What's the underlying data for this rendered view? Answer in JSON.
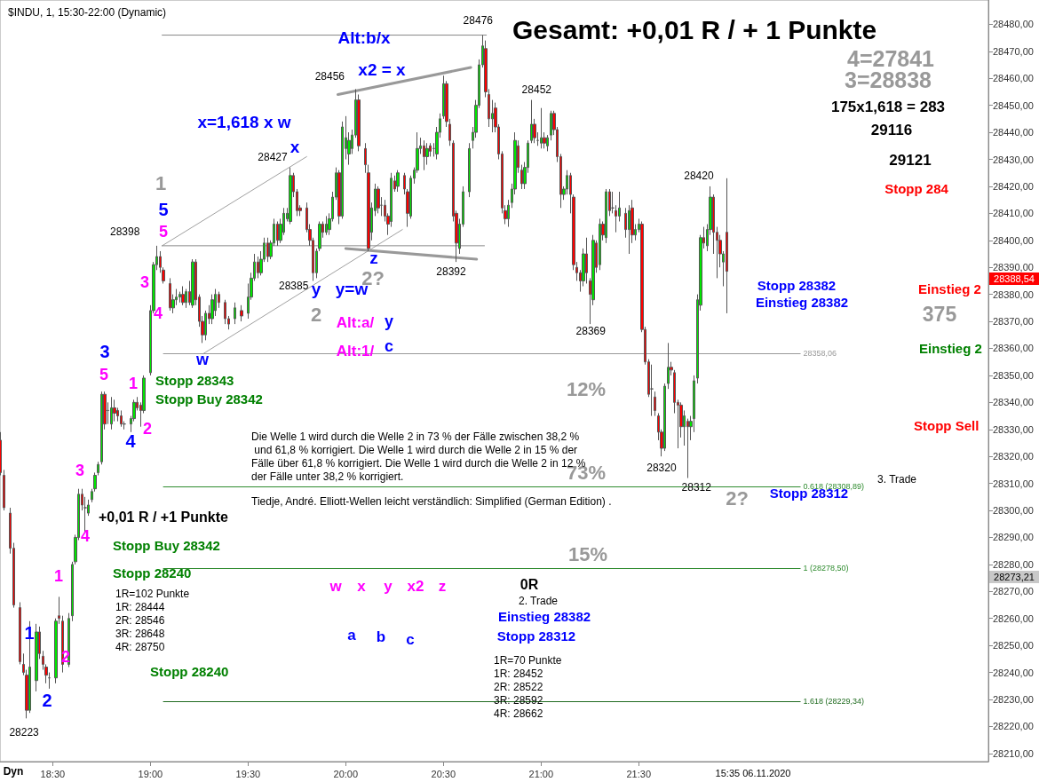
{
  "chart_data": {
    "type": "candlestick",
    "title": "$INDU, 1, 15:30-22:00 (Dynamic)",
    "subtitle": "Gesamt: +0,01 R / + 1 Punkte",
    "x": [
      18.2333,
      18.25,
      18.2833,
      18.3,
      18.3333,
      18.35,
      18.3667,
      18.3833,
      18.4167,
      18.4333,
      18.45,
      18.4667,
      18.4833,
      18.5167,
      18.5333,
      18.55,
      18.5833,
      18.6,
      18.6167,
      18.6333,
      18.65,
      18.6667,
      18.6833,
      18.7,
      18.7167,
      18.7333,
      18.75,
      18.7667,
      18.7833,
      18.8,
      18.8167,
      18.8333,
      18.85,
      18.8667,
      18.9,
      18.9167,
      18.9333,
      18.95,
      18.9667,
      19.0,
      19.0167,
      19.0333,
      19.05,
      19.0667,
      19.1,
      19.1167,
      19.1333,
      19.15,
      19.1667,
      19.1833,
      19.2,
      19.2167,
      19.2333,
      19.25,
      19.2667,
      19.2833,
      19.3,
      19.3167,
      19.3333,
      19.35,
      19.3833,
      19.4,
      19.4333,
      19.4667,
      19.5,
      19.5167,
      19.5333,
      19.55,
      19.5667,
      19.5833,
      19.6,
      19.6167,
      19.6333,
      19.65,
      19.6667,
      19.6833,
      19.7,
      19.7167,
      19.7333,
      19.75,
      19.7667,
      19.8,
      19.8167,
      19.8333,
      19.85,
      19.8667,
      19.8833,
      19.9,
      19.9167,
      19.9333,
      19.95,
      19.9667,
      19.9833,
      20.0,
      20.0167,
      20.0333,
      20.05,
      20.0667,
      20.1,
      20.1167,
      20.1333,
      20.15,
      20.1667,
      20.1833,
      20.2,
      20.2167,
      20.2333,
      20.25,
      20.2667,
      20.3,
      20.3167,
      20.3333,
      20.35,
      20.3667,
      20.3833,
      20.4,
      20.4167,
      20.4333,
      20.45,
      20.4667,
      20.4833,
      20.5,
      20.5167,
      20.5333,
      20.55,
      20.5667,
      20.5833,
      20.6,
      20.6333,
      20.65,
      20.6667,
      20.6833,
      20.7,
      20.7167,
      20.7333,
      20.75,
      20.7667,
      20.7833,
      20.8,
      20.8167,
      20.8333,
      20.85,
      20.8667,
      20.8833,
      20.9,
      20.9167,
      20.9333,
      20.95,
      20.9667,
      20.9833,
      21.0,
      21.0167,
      21.0333,
      21.05,
      21.0667,
      21.0833,
      21.1,
      21.1167,
      21.1333,
      21.15,
      21.1667,
      21.1833,
      21.2,
      21.2167,
      21.2333,
      21.25,
      21.2667,
      21.2833,
      21.3,
      21.3167,
      21.3333,
      21.35,
      21.3667,
      21.3833,
      21.4,
      21.4333,
      21.45,
      21.4667,
      21.4833,
      21.5,
      21.5167,
      21.5333,
      21.55,
      21.5667,
      21.5833,
      21.6,
      21.6167,
      21.6333,
      21.65,
      21.6667,
      21.6833,
      21.7,
      21.7167,
      21.7333,
      21.75,
      21.7667,
      21.7833,
      21.8,
      21.8167,
      21.8333,
      21.85,
      21.8667,
      21.8833,
      21.9,
      21.9167,
      21.9333,
      21.95
    ],
    "ohlc": [
      [
        28326,
        28329,
        28313,
        28314
      ],
      [
        28313,
        28315,
        28300,
        28301
      ],
      [
        28299,
        28301,
        28284,
        28286
      ],
      [
        28286,
        28288,
        28264,
        28265
      ],
      [
        28264,
        28266,
        28243,
        28244
      ],
      [
        28243,
        28247,
        28239,
        28240
      ],
      [
        28239,
        28241,
        28223,
        28226
      ],
      [
        28226,
        28259,
        28225,
        28242
      ],
      [
        28237,
        28258,
        28233,
        28255
      ],
      [
        28255,
        28257,
        28245,
        28247
      ],
      [
        28246,
        28248,
        28241,
        28243
      ],
      [
        28242,
        28243,
        28236,
        28239
      ],
      [
        28238,
        28240,
        28234,
        28238
      ],
      [
        28238,
        28260,
        28236,
        28259
      ],
      [
        28261,
        28268,
        28258,
        28260
      ],
      [
        28259,
        28261,
        28240,
        28243
      ],
      [
        28243,
        28262,
        28242,
        28260
      ],
      [
        28261,
        28281,
        28259,
        28280
      ],
      [
        28281,
        28291,
        28280,
        28290
      ],
      [
        28290,
        28308,
        28289,
        28306
      ],
      [
        28306,
        28308,
        28300,
        28302
      ],
      [
        28301,
        28305,
        28292,
        28301
      ],
      [
        28299,
        28304,
        28298,
        28302
      ],
      [
        28304,
        28308,
        28303,
        28307
      ],
      [
        28308,
        28314,
        28307,
        28313
      ],
      [
        28314,
        28318,
        28313,
        28317
      ],
      [
        28318,
        28344,
        28317,
        28343
      ],
      [
        28343,
        28344,
        28330,
        28332
      ],
      [
        28337,
        28340,
        28332,
        28337
      ],
      [
        28332,
        28342,
        28330,
        28338
      ],
      [
        28338,
        28341,
        28333,
        28336
      ],
      [
        28337,
        28338,
        28333,
        28335
      ],
      [
        28335,
        28337,
        28331,
        28332
      ],
      [
        28332,
        28333,
        28330,
        28332
      ],
      [
        28332,
        28335,
        28329,
        28334
      ],
      [
        28334,
        28341,
        28333,
        28340
      ],
      [
        28340,
        28342,
        28337,
        28338
      ],
      [
        28339,
        28340,
        28331,
        28337
      ],
      [
        28337,
        28350,
        28336,
        28349
      ],
      [
        28351,
        28376,
        28350,
        28374
      ],
      [
        28374,
        28392,
        28373,
        28391
      ],
      [
        28391,
        28398,
        28389,
        28394
      ],
      [
        28394,
        28396,
        28388,
        28390
      ],
      [
        28389,
        28390,
        28384,
        28385
      ],
      [
        28384,
        28386,
        28374,
        28375
      ],
      [
        28375,
        28380,
        28373,
        28378
      ],
      [
        28378,
        28382,
        28376,
        28379
      ],
      [
        28379,
        28381,
        28377,
        28380
      ],
      [
        28380,
        28383,
        28376,
        28377
      ],
      [
        28377,
        28382,
        28375,
        28381
      ],
      [
        28381,
        28385,
        28376,
        28377
      ],
      [
        28376,
        28393,
        28375,
        28392
      ],
      [
        28392,
        28393,
        28376,
        28378
      ],
      [
        28379,
        28380,
        28368,
        28370
      ],
      [
        28370,
        28372,
        28362,
        28365
      ],
      [
        28365,
        28374,
        28363,
        28373
      ],
      [
        28373,
        28376,
        28369,
        28371
      ],
      [
        28371,
        28380,
        28369,
        28378
      ],
      [
        28374,
        28382,
        28372,
        28380
      ],
      [
        28380,
        28381,
        28375,
        28377
      ],
      [
        28377,
        28378,
        28369,
        28371
      ],
      [
        28371,
        28372,
        28367,
        28369
      ],
      [
        28371,
        28377,
        28369,
        28375
      ],
      [
        28374,
        28376,
        28370,
        28372
      ],
      [
        28373,
        28384,
        28371,
        28379
      ],
      [
        28379,
        28388,
        28378,
        28386
      ],
      [
        28386,
        28395,
        28385,
        28392
      ],
      [
        28392,
        28394,
        28386,
        28388
      ],
      [
        28388,
        28396,
        28387,
        28393
      ],
      [
        28393,
        28401,
        28392,
        28399
      ],
      [
        28399,
        28401,
        28392,
        28394
      ],
      [
        28394,
        28400,
        28393,
        28399
      ],
      [
        28399,
        28408,
        28398,
        28406
      ],
      [
        28406,
        28407,
        28398,
        28400
      ],
      [
        28400,
        28408,
        28399,
        28406
      ],
      [
        28403,
        28412,
        28402,
        28410
      ],
      [
        28408,
        28412,
        28407,
        28410
      ],
      [
        28407,
        28427,
        28406,
        28424
      ],
      [
        28424,
        28425,
        28416,
        28418
      ],
      [
        28418,
        28419,
        28409,
        28411
      ],
      [
        28412,
        28413,
        28409,
        28411
      ],
      [
        28412,
        28414,
        28403,
        28404
      ],
      [
        28404,
        28406,
        28398,
        28400
      ],
      [
        28400,
        28401,
        28385,
        28388
      ],
      [
        28388,
        28397,
        28386,
        28396
      ],
      [
        28397,
        28407,
        28396,
        28406
      ],
      [
        28406,
        28407,
        28401,
        28403
      ],
      [
        28403,
        28409,
        28402,
        28406
      ],
      [
        28404,
        28410,
        28402,
        28408
      ],
      [
        28408,
        28418,
        28407,
        28416
      ],
      [
        28416,
        28427,
        28415,
        28425
      ],
      [
        28425,
        28426,
        28406,
        28409
      ],
      [
        28409,
        28444,
        28408,
        28442
      ],
      [
        28434,
        28446,
        28430,
        28438
      ],
      [
        28432,
        28440,
        28428,
        28437
      ],
      [
        28434,
        28441,
        28432,
        28439
      ],
      [
        28439,
        28456,
        28438,
        28452
      ],
      [
        28452,
        28454,
        28433,
        28435
      ],
      [
        28434,
        28436,
        28425,
        28428
      ],
      [
        28425,
        28428,
        28396,
        28397
      ],
      [
        28403,
        28414,
        28400,
        28412
      ],
      [
        28411,
        28421,
        28409,
        28419
      ],
      [
        28419,
        28420,
        28410,
        28412
      ],
      [
        28413,
        28416,
        28409,
        28413
      ],
      [
        28413,
        28415,
        28407,
        28409
      ],
      [
        28409,
        28410,
        28402,
        28406
      ],
      [
        28407,
        28425,
        28405,
        28423
      ],
      [
        28422,
        28424,
        28418,
        28419
      ],
      [
        28420,
        28426,
        28418,
        28425
      ],
      [
        28424,
        28425,
        28417,
        28419
      ],
      [
        28418,
        28419,
        28405,
        28410
      ],
      [
        28409,
        28424,
        28408,
        28423
      ],
      [
        28423,
        28427,
        28421,
        28426
      ],
      [
        28426,
        28440,
        28425,
        28434
      ],
      [
        28434,
        28438,
        28432,
        28435
      ],
      [
        28435,
        28437,
        28426,
        28431
      ],
      [
        28431,
        28436,
        28428,
        28434
      ],
      [
        28435,
        28436,
        28431,
        28433
      ],
      [
        28434,
        28436,
        28431,
        28434
      ],
      [
        28432,
        28442,
        28430,
        28440
      ],
      [
        28440,
        28447,
        28438,
        28445
      ],
      [
        28446,
        28461,
        28445,
        28458
      ],
      [
        28458,
        28459,
        28442,
        28444
      ],
      [
        28443,
        28445,
        28435,
        28437
      ],
      [
        28436,
        28437,
        28407,
        28409
      ],
      [
        28410,
        28411,
        28392,
        28399
      ],
      [
        28397,
        28408,
        28395,
        28406
      ],
      [
        28406,
        28420,
        28405,
        28418
      ],
      [
        28418,
        28436,
        28416,
        28434
      ],
      [
        28437,
        28442,
        28434,
        28440
      ],
      [
        28440,
        28452,
        28438,
        28450
      ],
      [
        28450,
        28467,
        28449,
        28465
      ],
      [
        28465,
        28476,
        28464,
        28472
      ],
      [
        28471,
        28474,
        28453,
        28455
      ],
      [
        28454,
        28456,
        28442,
        28445
      ],
      [
        28445,
        28452,
        28440,
        28447
      ],
      [
        28449,
        28451,
        28440,
        28442
      ],
      [
        28442,
        28443,
        28430,
        28432
      ],
      [
        28432,
        28433,
        28410,
        28412
      ],
      [
        28411,
        28413,
        28406,
        28408
      ],
      [
        28408,
        28415,
        28405,
        28413
      ],
      [
        28414,
        28421,
        28412,
        28419
      ],
      [
        28419,
        28440,
        28417,
        28437
      ],
      [
        28435,
        28437,
        28425,
        28427
      ],
      [
        28426,
        28428,
        28419,
        28421
      ],
      [
        28421,
        28429,
        28419,
        28427
      ],
      [
        28427,
        28437,
        28425,
        28436
      ],
      [
        28437,
        28452,
        28436,
        28443
      ],
      [
        28443,
        28445,
        28436,
        28438
      ],
      [
        28437,
        28440,
        28435,
        28437
      ],
      [
        28436,
        28449,
        28434,
        28438
      ],
      [
        28438,
        28440,
        28434,
        28436
      ],
      [
        28435,
        28439,
        28433,
        28438
      ],
      [
        28439,
        28448,
        28437,
        28447
      ],
      [
        28447,
        28448,
        28439,
        28441
      ],
      [
        28441,
        28442,
        28429,
        28431
      ],
      [
        28431,
        28432,
        28412,
        28417
      ],
      [
        28417,
        28420,
        28415,
        28419
      ],
      [
        28419,
        28426,
        28417,
        28424
      ],
      [
        28424,
        28425,
        28410,
        28417
      ],
      [
        28416,
        28417,
        28389,
        28391
      ],
      [
        28390,
        28392,
        28385,
        28388
      ],
      [
        28388,
        28389,
        28381,
        28385
      ],
      [
        28385,
        28397,
        28383,
        28395
      ],
      [
        28395,
        28401,
        28384,
        28388
      ],
      [
        28385,
        28386,
        28369,
        28380
      ],
      [
        28378,
        28402,
        28376,
        28400
      ],
      [
        28399,
        28400,
        28388,
        28390
      ],
      [
        28391,
        28408,
        28389,
        28406
      ],
      [
        28406,
        28407,
        28400,
        28402
      ],
      [
        28401,
        28419,
        28399,
        28418
      ],
      [
        28418,
        28419,
        28409,
        28411
      ],
      [
        28412,
        28418,
        28410,
        28412
      ],
      [
        28411,
        28413,
        28403,
        28409
      ],
      [
        28409,
        28418,
        28407,
        28412
      ],
      [
        28410,
        28412,
        28401,
        28404
      ],
      [
        28404,
        28413,
        28395,
        28411
      ],
      [
        28412,
        28415,
        28399,
        28402
      ],
      [
        28402,
        28406,
        28400,
        28404
      ],
      [
        28404,
        28408,
        28403,
        28406
      ],
      [
        28406,
        28407,
        28366,
        28367
      ],
      [
        28367,
        28368,
        28354,
        28355
      ],
      [
        28355,
        28356,
        28342,
        28343
      ],
      [
        28345,
        28354,
        28335,
        28345
      ],
      [
        28342,
        28344,
        28335,
        28337
      ],
      [
        28335,
        28336,
        28326,
        28329
      ],
      [
        28329,
        28330,
        28320,
        28323
      ],
      [
        28323,
        28347,
        28322,
        28346
      ],
      [
        28347,
        28362,
        28345,
        28353
      ],
      [
        28353,
        28355,
        28350,
        28352
      ],
      [
        28351,
        28352,
        28336,
        28340
      ],
      [
        28340,
        28341,
        28323,
        28339
      ],
      [
        28339,
        28340,
        28327,
        28331
      ],
      [
        28331,
        28337,
        28324,
        28335
      ],
      [
        28333,
        28334,
        28312,
        28331
      ],
      [
        28331,
        28335,
        28326,
        28333
      ],
      [
        28334,
        28350,
        28329,
        28348
      ],
      [
        28349,
        28380,
        28347,
        28378
      ],
      [
        28376,
        28402,
        28374,
        28401
      ],
      [
        28401,
        28405,
        28397,
        28399
      ],
      [
        28398,
        28406,
        28396,
        28404
      ],
      [
        28404,
        28420,
        28402,
        28416
      ],
      [
        28416,
        28417,
        28395,
        28403
      ],
      [
        28403,
        28405,
        28386,
        28400
      ],
      [
        28400,
        28402,
        28390,
        28395
      ],
      [
        28392,
        28396,
        28383,
        28395
      ],
      [
        28403,
        28423,
        28373,
        28388.54
      ]
    ],
    "series": [
      {
        "type": "line",
        "color": "#a0a0a0",
        "x": [
          19.06,
          19.8
        ],
        "values": [
          28398,
          28431
        ]
      },
      {
        "type": "line",
        "color": "#a0a0a0",
        "x": [
          19.27,
          20.29
        ],
        "values": [
          28358,
          28404
        ]
      },
      {
        "type": "line",
        "color": "#999999",
        "x": [
          19.96,
          20.64
        ],
        "values": [
          28454,
          28464
        ]
      },
      {
        "type": "line",
        "color": "#999999",
        "x": [
          20.0,
          20.67
        ],
        "values": [
          28397,
          28393
        ]
      },
      {
        "type": "line",
        "color": "#888888",
        "x": [
          19.06,
          20.71
        ],
        "values": [
          28398,
          28398
        ]
      },
      {
        "type": "line",
        "color": "#888888",
        "x": [
          19.06,
          20.72
        ],
        "values": [
          28476,
          28476
        ]
      }
    ],
    "ref_lines": [
      {
        "axis": "y",
        "value": 28358.06,
        "label": "28358,06",
        "color": "#999999"
      },
      {
        "axis": "y",
        "value": 28308.89,
        "label": "0.618 (28308,89)",
        "color": "#2e8b2e"
      },
      {
        "axis": "y",
        "value": 28278.5,
        "label": "1 (28278,50)",
        "color": "#2e8b2e"
      },
      {
        "axis": "y",
        "value": 28229.34,
        "label": "1.618 (28229,34)",
        "color": "#1f6b1f"
      }
    ],
    "xlim": [
      18.23,
      23.29
    ],
    "xticks": [
      {
        "value": 18.5,
        "label": "18:30"
      },
      {
        "value": 19,
        "label": "19:00"
      },
      {
        "value": 19.5,
        "label": "19:30"
      },
      {
        "value": 20,
        "label": "20:00"
      },
      {
        "value": 20.5,
        "label": "20:30"
      },
      {
        "value": 21,
        "label": "21:00"
      },
      {
        "value": 21.5,
        "label": "21:30"
      }
    ],
    "ylim": [
      28207,
      28489
    ],
    "yticks": [
      {
        "value": 28210,
        "label": "28210,00"
      },
      {
        "value": 28220,
        "label": "28220,00"
      },
      {
        "value": 28230,
        "label": "28230,00"
      },
      {
        "value": 28240,
        "label": "28240,00"
      },
      {
        "value": 28250,
        "label": "28250,00"
      },
      {
        "value": 28260,
        "label": "28260,00"
      },
      {
        "value": 28270,
        "label": "28270,00"
      },
      {
        "value": 28280,
        "label": "28280,00"
      },
      {
        "value": 28290,
        "label": "28290,00"
      },
      {
        "value": 28300,
        "label": "28300,00"
      },
      {
        "value": 28310,
        "label": "28310,00"
      },
      {
        "value": 28320,
        "label": "28320,00"
      },
      {
        "value": 28330,
        "label": "28330,00"
      },
      {
        "value": 28340,
        "label": "28340,00"
      },
      {
        "value": 28350,
        "label": "28350,00"
      },
      {
        "value": 28360,
        "label": "28360,00"
      },
      {
        "value": 28370,
        "label": "28370,00"
      },
      {
        "value": 28380,
        "label": "28380,00"
      },
      {
        "value": 28390,
        "label": "28390,00"
      },
      {
        "value": 28400,
        "label": "28400,00"
      },
      {
        "value": 28410,
        "label": "28410,00"
      },
      {
        "value": 28420,
        "label": "28420,00"
      },
      {
        "value": 28430,
        "label": "28430,00"
      },
      {
        "value": 28440,
        "label": "28440,00"
      },
      {
        "value": 28450,
        "label": "28450,00"
      },
      {
        "value": 28460,
        "label": "28460,00"
      },
      {
        "value": 28470,
        "label": "28470,00"
      },
      {
        "value": 28480,
        "label": "28480,00"
      }
    ],
    "annotations": [
      "4=27841",
      "3=28838",
      "175x1,618 = 283",
      "29116",
      "29121",
      "Stopp 284",
      "Einstieg 2",
      "375",
      "Einstieg 2",
      "Stopp Sell",
      "Stopp 28382",
      "Einstieg 28382",
      "3. Trade",
      "Stopp 28312",
      "2?",
      "12%",
      "73%",
      "15%",
      "Die Welle 1 wird durch die Welle 2 in 73 % der Fälle zwischen 38,2 %\n und 61,8 % korrigiert. Die Welle 1 wird durch die Welle 2 in 15 % der\nFälle über 61,8 % korrigiert. Die Welle 1 wird durch die Welle 2 in 12 %\nder Fälle unter 38,2 % korrigiert.",
      "Tiedje, André. Elliott-Wellen leicht verständlich: Simplified (German Edition) .",
      "Alt:b/x",
      "x2 = x",
      "x=1,618 x w",
      "x",
      "1",
      "5",
      "5",
      "3",
      "4",
      "w",
      "3",
      "5",
      "1",
      "2",
      "4",
      "Stopp 28343",
      "Stopp Buy 28342",
      "3",
      "4",
      "+0,01 R / +1 Punkte",
      "Stopp Buy 28342",
      "Stopp 28240",
      "1",
      "1R=102 Punkte\n1R: 28444\n2R: 28546\n3R: 28648\n4R: 28750",
      "1",
      "2",
      "2",
      "Stopp 28240",
      "y",
      "y=w",
      "z",
      "2?",
      "2",
      "Alt:a/",
      "y",
      "Alt:1/",
      "c",
      "w",
      "x",
      "y",
      "x2",
      "z",
      "a",
      "b",
      "c",
      "0R",
      "2. Trade",
      "Einstieg 28382",
      "Stopp 28312",
      "1R=70 Punkte\n1R: 28452\n2R: 28522\n3R: 28592\n4R: 28662",
      "Dyn",
      "15:35 06.11.2020",
      {
        "text": "28223",
        "x": 18.3667,
        "y": 28223
      },
      {
        "text": "28398",
        "x": 19.0333,
        "y": 28398
      },
      {
        "text": "28427",
        "x": 19.7167,
        "y": 28427
      },
      {
        "text": "28456",
        "x": 20.05,
        "y": 28456
      },
      {
        "text": "28476",
        "x": 20.7,
        "y": 28476
      },
      {
        "text": "28385",
        "x": 19.8333,
        "y": 28385
      },
      {
        "text": "28392",
        "x": 20.5667,
        "y": 28392
      },
      {
        "text": "28452",
        "x": 20.95,
        "y": 28452
      },
      {
        "text": "28369",
        "x": 21.25,
        "y": 28369
      },
      {
        "text": "28420",
        "x": 21.8667,
        "y": 28420
      },
      {
        "text": "28320",
        "x": 21.6167,
        "y": 28320
      },
      {
        "text": "28312",
        "x": 21.75,
        "y": 28312
      },
      "28388,54",
      "28273,21"
    ]
  }
}
